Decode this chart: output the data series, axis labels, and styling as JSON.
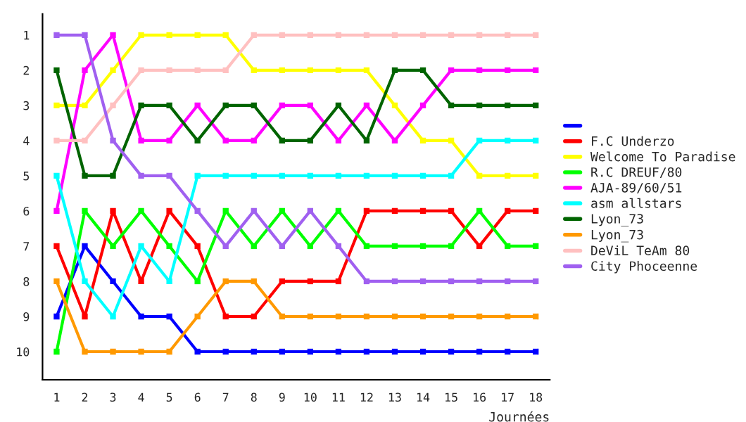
{
  "chart_data": {
    "type": "line",
    "xlabel": "Journées",
    "x": [
      1,
      2,
      3,
      4,
      5,
      6,
      7,
      8,
      9,
      10,
      11,
      12,
      13,
      14,
      15,
      16,
      17,
      18
    ],
    "xlim": [
      0.5,
      18.5
    ],
    "xticks": [
      1,
      2,
      3,
      4,
      5,
      6,
      7,
      8,
      9,
      10,
      11,
      12,
      13,
      14,
      15,
      16,
      17,
      18
    ],
    "ylim": [
      10.8,
      0.4
    ],
    "yticks": [
      1,
      2,
      3,
      4,
      5,
      6,
      7,
      8,
      9,
      10
    ],
    "grid": false,
    "legend": "right",
    "marker": "square",
    "line_style": "solid",
    "series": [
      {
        "color": "#0000ff",
        "values": [
          9,
          7,
          8,
          9,
          9,
          10,
          10,
          10,
          10,
          10,
          10,
          10,
          10,
          10,
          10,
          10,
          10,
          10
        ]
      },
      {
        "name": "F.C Underzo",
        "color": "#ff0000",
        "values": [
          7,
          9,
          6,
          8,
          6,
          7,
          9,
          9,
          8,
          8,
          8,
          6,
          6,
          6,
          6,
          7,
          6,
          6
        ]
      },
      {
        "name": "Welcome To Paradise",
        "color": "#ffff00",
        "values": [
          3,
          3,
          2,
          1,
          1,
          1,
          1,
          2,
          2,
          2,
          2,
          2,
          3,
          4,
          4,
          5,
          5,
          5
        ]
      },
      {
        "name": "R.C DREUF/80",
        "color": "#00ff00",
        "values": [
          10,
          6,
          7,
          6,
          7,
          8,
          6,
          7,
          6,
          7,
          6,
          7,
          7,
          7,
          7,
          6,
          7,
          7
        ]
      },
      {
        "name": "AJA-89/60/51",
        "color": "#ff00ff",
        "values": [
          6,
          2,
          1,
          4,
          4,
          3,
          4,
          4,
          3,
          3,
          4,
          3,
          4,
          3,
          2,
          2,
          2,
          2
        ]
      },
      {
        "name": "asm allstars",
        "color": "#00ffff",
        "values": [
          5,
          8,
          9,
          7,
          8,
          5,
          5,
          5,
          5,
          5,
          5,
          5,
          5,
          5,
          5,
          4,
          4,
          4
        ]
      },
      {
        "name": "Lyon_73",
        "color": "#006400",
        "values": [
          2,
          5,
          5,
          3,
          3,
          4,
          3,
          3,
          4,
          4,
          3,
          4,
          2,
          2,
          3,
          3,
          3,
          3
        ]
      },
      {
        "name": "Lyon_73",
        "color": "#ff9900",
        "values": [
          8,
          10,
          10,
          10,
          10,
          9,
          8,
          8,
          9,
          9,
          9,
          9,
          9,
          9,
          9,
          9,
          9,
          9
        ]
      },
      {
        "name": "DeViL TeAm 80",
        "color": "#ffc0c0",
        "values": [
          4,
          4,
          3,
          2,
          2,
          2,
          2,
          1,
          1,
          1,
          1,
          1,
          1,
          1,
          1,
          1,
          1,
          1
        ]
      },
      {
        "name": "City Phoceenne",
        "color": "#a060f0",
        "values": [
          1,
          1,
          4,
          5,
          5,
          6,
          7,
          6,
          7,
          6,
          7,
          8,
          8,
          8,
          8,
          8,
          8,
          8
        ]
      }
    ]
  }
}
